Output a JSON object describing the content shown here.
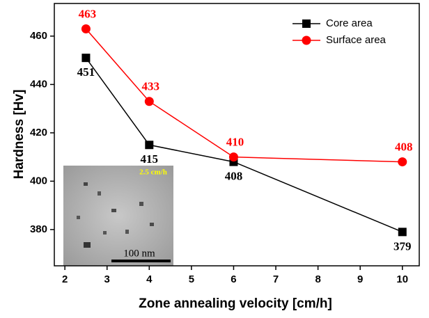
{
  "chart_data": {
    "type": "line",
    "x_label": "Zone annealing velocity [cm/h]",
    "y_label": "Hardness [Hv]",
    "x": [
      2.5,
      4,
      6,
      10
    ],
    "series": [
      {
        "name": "Core area",
        "color": "#000000",
        "marker": "square",
        "values": [
          451,
          415,
          408,
          379
        ]
      },
      {
        "name": "Surface area",
        "color": "#ff0000",
        "marker": "circle",
        "values": [
          463,
          433,
          410,
          408
        ]
      }
    ],
    "xlim": [
      1.75,
      10.4
    ],
    "xticks": [
      2,
      3,
      4,
      5,
      6,
      7,
      8,
      9,
      10
    ],
    "ylim": [
      365,
      473.5
    ],
    "yticks": [
      380,
      400,
      420,
      440,
      460
    ],
    "legend": "upper right",
    "inset": {
      "label": "2.5 cm/h",
      "scale_bar": "100 nm"
    }
  }
}
